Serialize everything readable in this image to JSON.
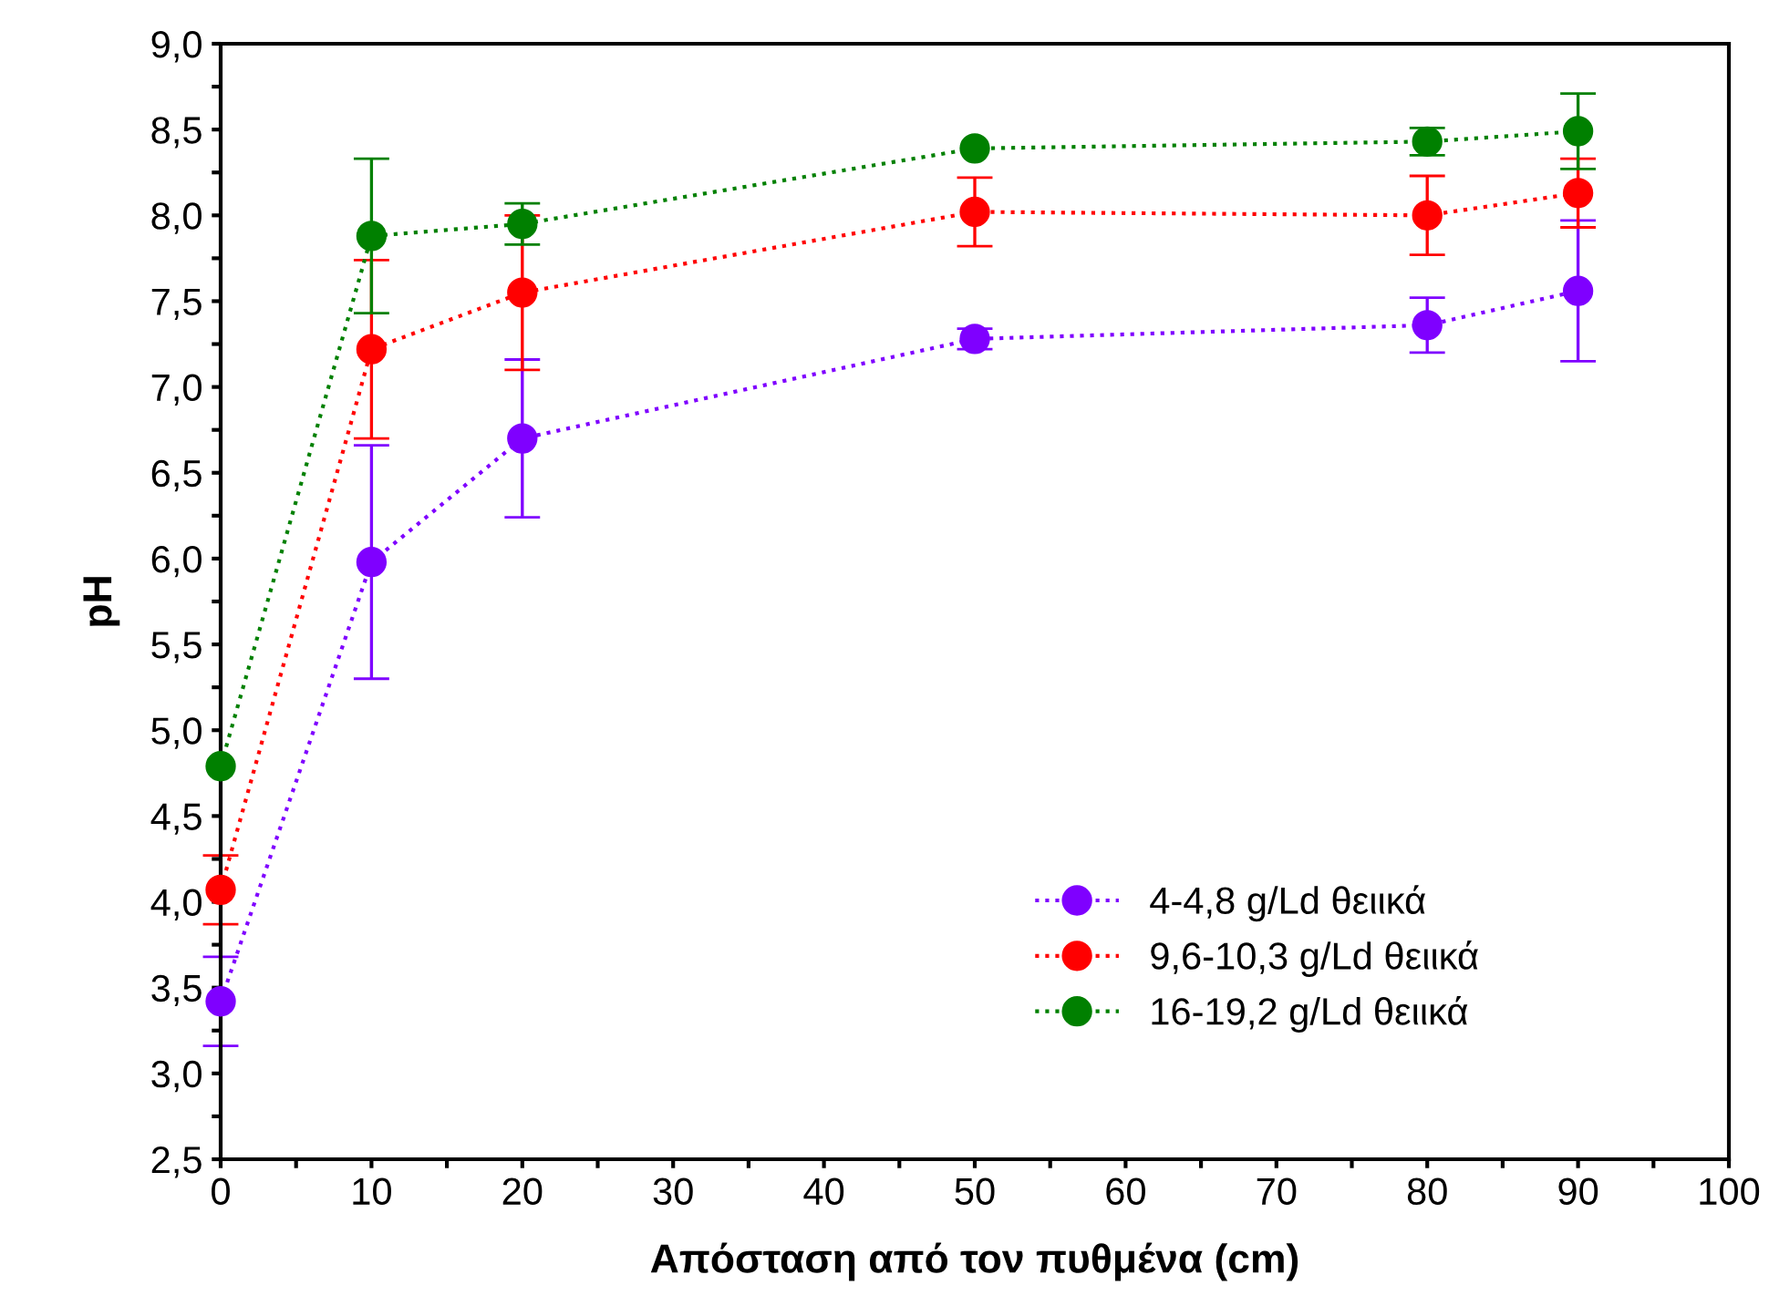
{
  "chart_data": {
    "type": "line",
    "xlabel": "Απόσταση από τον πυθμένα (cm)",
    "ylabel": "pH",
    "x": [
      0,
      10,
      20,
      50,
      80,
      90
    ],
    "series": [
      {
        "name": "4-4,8 g/Ld θειικά",
        "color": "#7f00ff",
        "values": [
          3.42,
          5.98,
          6.7,
          7.28,
          7.36,
          7.56
        ],
        "errors": [
          0.26,
          0.68,
          0.46,
          0.06,
          0.16,
          0.41
        ]
      },
      {
        "name": "9,6-10,3 g/Ld θειικά",
        "color": "#ff0000",
        "values": [
          4.07,
          7.22,
          7.55,
          8.02,
          8.0,
          8.13
        ],
        "errors": [
          0.2,
          0.52,
          0.45,
          0.2,
          0.23,
          0.2
        ]
      },
      {
        "name": "16-19,2 g/Ld θειικά",
        "color": "#008000",
        "values": [
          4.79,
          7.88,
          7.95,
          8.39,
          8.43,
          8.49
        ],
        "errors": [
          null,
          0.45,
          0.12,
          null,
          0.08,
          0.22
        ]
      }
    ],
    "xlim": [
      0,
      100
    ],
    "xticks": [
      0,
      {
        "value": 5,
        "label": null
      },
      10,
      {
        "value": 15,
        "label": null
      },
      20,
      {
        "value": 25,
        "label": null
      },
      30,
      {
        "value": 35,
        "label": null
      },
      40,
      {
        "value": 45,
        "label": null
      },
      50,
      {
        "value": 55,
        "label": null
      },
      60,
      {
        "value": 65,
        "label": null
      },
      70,
      {
        "value": 75,
        "label": null
      },
      80,
      {
        "value": 85,
        "label": null
      },
      90,
      {
        "value": 95,
        "label": null
      },
      100
    ],
    "ylim": [
      2.5,
      9.0
    ],
    "yticks": [
      {
        "value": 2.5,
        "label": "2,5"
      },
      {
        "value": 2.75,
        "label": null
      },
      {
        "value": 3.0,
        "label": "3,0"
      },
      {
        "value": 3.25,
        "label": null
      },
      {
        "value": 3.5,
        "label": "3,5"
      },
      {
        "value": 3.75,
        "label": null
      },
      {
        "value": 4.0,
        "label": "4,0"
      },
      {
        "value": 4.25,
        "label": null
      },
      {
        "value": 4.5,
        "label": "4,5"
      },
      {
        "value": 4.75,
        "label": null
      },
      {
        "value": 5.0,
        "label": "5,0"
      },
      {
        "value": 5.25,
        "label": null
      },
      {
        "value": 5.5,
        "label": "5,5"
      },
      {
        "value": 5.75,
        "label": null
      },
      {
        "value": 6.0,
        "label": "6,0"
      },
      {
        "value": 6.25,
        "label": null
      },
      {
        "value": 6.5,
        "label": "6,5"
      },
      {
        "value": 6.75,
        "label": null
      },
      {
        "value": 7.0,
        "label": "7,0"
      },
      {
        "value": 7.25,
        "label": null
      },
      {
        "value": 7.5,
        "label": "7,5"
      },
      {
        "value": 7.75,
        "label": null
      },
      {
        "value": 8.0,
        "label": "8,0"
      },
      {
        "value": 8.25,
        "label": null
      },
      {
        "value": 8.5,
        "label": "8,5"
      },
      {
        "value": 8.75,
        "label": null
      },
      {
        "value": 9.0,
        "label": "9,0"
      }
    ],
    "marker": "circle",
    "line_style": "dotted",
    "legend": "bottom right",
    "grid": false
  }
}
